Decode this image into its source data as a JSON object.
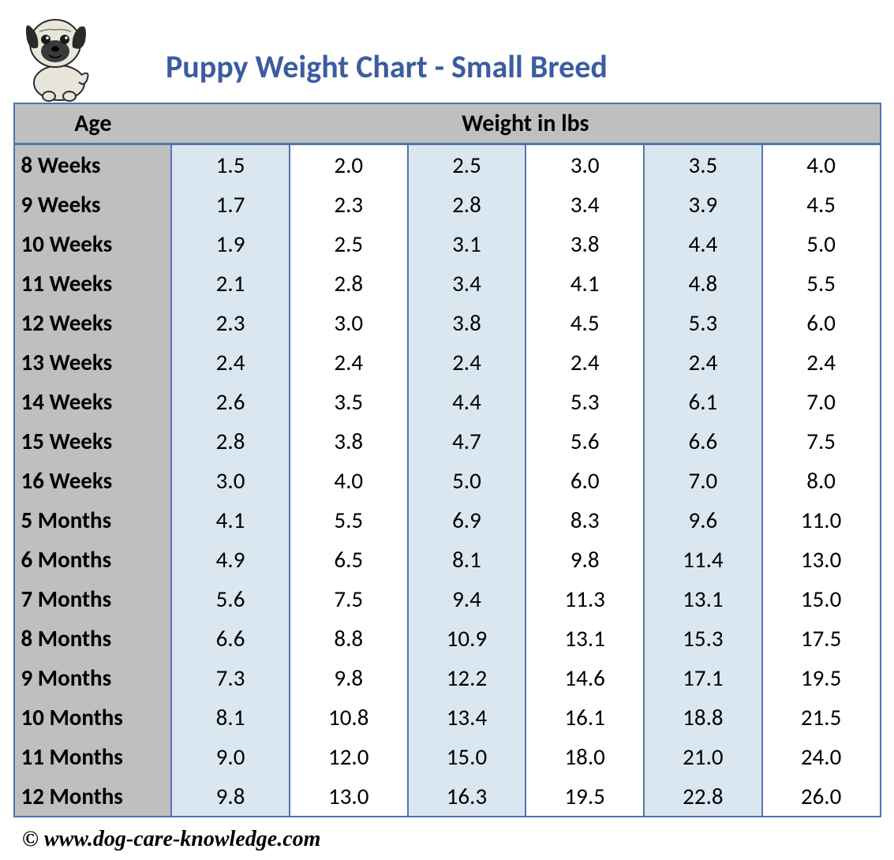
{
  "title": "Puppy Weight Chart - Small Breed",
  "footer": "© www.dog-care-knowledge.com",
  "table": {
    "type": "table",
    "header_bg": "#bfbfbf",
    "age_col_bg": "#bfbfbf",
    "alt_col_bg": "#dbe7f0",
    "plain_col_bg": "#ffffff",
    "border_color": "#5472b0",
    "title_color": "#3b5ca0",
    "font_family": "Calibri",
    "header_fontsize": 30,
    "cell_fontsize": 29,
    "columns": [
      "Age",
      "Weight in lbs"
    ],
    "age_header": "Age",
    "weight_header": "Weight in lbs",
    "rows": [
      {
        "age": "8 Weeks",
        "w": [
          "1.5",
          "2.0",
          "2.5",
          "3.0",
          "3.5",
          "4.0"
        ]
      },
      {
        "age": "9 Weeks",
        "w": [
          "1.7",
          "2.3",
          "2.8",
          "3.4",
          "3.9",
          "4.5"
        ]
      },
      {
        "age": "10 Weeks",
        "w": [
          "1.9",
          "2.5",
          "3.1",
          "3.8",
          "4.4",
          "5.0"
        ]
      },
      {
        "age": "11 Weeks",
        "w": [
          "2.1",
          "2.8",
          "3.4",
          "4.1",
          "4.8",
          "5.5"
        ]
      },
      {
        "age": "12 Weeks",
        "w": [
          "2.3",
          "3.0",
          "3.8",
          "4.5",
          "5.3",
          "6.0"
        ]
      },
      {
        "age": "13 Weeks",
        "w": [
          "2.4",
          "2.4",
          "2.4",
          "2.4",
          "2.4",
          "2.4"
        ]
      },
      {
        "age": "14 Weeks",
        "w": [
          "2.6",
          "3.5",
          "4.4",
          "5.3",
          "6.1",
          "7.0"
        ]
      },
      {
        "age": "15 Weeks",
        "w": [
          "2.8",
          "3.8",
          "4.7",
          "5.6",
          "6.6",
          "7.5"
        ]
      },
      {
        "age": "16 Weeks",
        "w": [
          "3.0",
          "4.0",
          "5.0",
          "6.0",
          "7.0",
          "8.0"
        ]
      },
      {
        "age": "5 Months",
        "w": [
          "4.1",
          "5.5",
          "6.9",
          "8.3",
          "9.6",
          "11.0"
        ]
      },
      {
        "age": "6 Months",
        "w": [
          "4.9",
          "6.5",
          "8.1",
          "9.8",
          "11.4",
          "13.0"
        ]
      },
      {
        "age": "7 Months",
        "w": [
          "5.6",
          "7.5",
          "9.4",
          "11.3",
          "13.1",
          "15.0"
        ]
      },
      {
        "age": "8 Months",
        "w": [
          "6.6",
          "8.8",
          "10.9",
          "13.1",
          "15.3",
          "17.5"
        ]
      },
      {
        "age": "9 Months",
        "w": [
          "7.3",
          "9.8",
          "12.2",
          "14.6",
          "17.1",
          "19.5"
        ]
      },
      {
        "age": "10 Months",
        "w": [
          "8.1",
          "10.8",
          "13.4",
          "16.1",
          "18.8",
          "21.5"
        ]
      },
      {
        "age": "11 Months",
        "w": [
          "9.0",
          "12.0",
          "15.0",
          "18.0",
          "21.0",
          "24.0"
        ]
      },
      {
        "age": "12 Months",
        "w": [
          "9.8",
          "13.0",
          "16.3",
          "19.5",
          "22.8",
          "26.0"
        ]
      }
    ]
  }
}
